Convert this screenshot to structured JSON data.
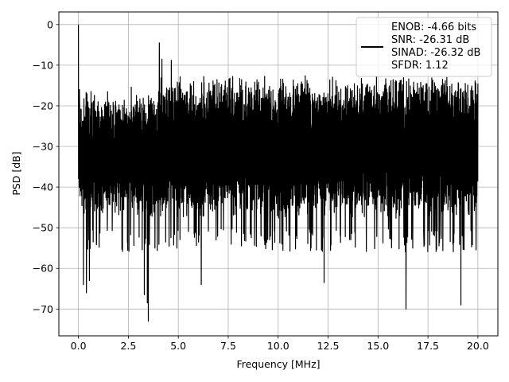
{
  "chart_data": {
    "type": "line",
    "title": "",
    "xlabel": "Frequency [MHz]",
    "ylabel": "PSD [dB]",
    "xlim": [
      -0.98,
      21.0
    ],
    "ylim": [
      -76.6,
      3.1
    ],
    "xticks": [
      0.0,
      2.5,
      5.0,
      7.5,
      10.0,
      12.5,
      15.0,
      17.5,
      20.0
    ],
    "xtick_labels": [
      "0.0",
      "2.5",
      "5.0",
      "7.5",
      "10.0",
      "12.5",
      "15.0",
      "17.5",
      "20.0"
    ],
    "yticks": [
      0,
      -10,
      -20,
      -30,
      -40,
      -50,
      -60,
      -70
    ],
    "ytick_labels": [
      "0",
      "−10",
      "−20",
      "−30",
      "−40",
      "−50",
      "−60",
      "−70"
    ],
    "grid": true,
    "legend_position": "top-right",
    "series": [
      {
        "color": "#000000",
        "x_range": [
          0.0,
          20.0
        ],
        "noise_floor_mean_db": -30,
        "upper_envelope_db": -14,
        "lower_envelope_db": -50,
        "spikes": [
          {
            "x": 0.0,
            "y": 0.0
          },
          {
            "x": 0.05,
            "y": -16.0
          },
          {
            "x": 4.05,
            "y": -4.5
          },
          {
            "x": 4.18,
            "y": -8.5
          },
          {
            "x": 4.65,
            "y": -8.8
          }
        ],
        "dips": [
          {
            "x": 0.25,
            "y": -64.0
          },
          {
            "x": 0.4,
            "y": -66.0
          },
          {
            "x": 0.55,
            "y": -63.0
          },
          {
            "x": 3.3,
            "y": -66.5
          },
          {
            "x": 3.45,
            "y": -68.5
          },
          {
            "x": 3.5,
            "y": -73.0
          },
          {
            "x": 6.15,
            "y": -64.0
          },
          {
            "x": 12.3,
            "y": -63.5
          },
          {
            "x": 16.4,
            "y": -70.0
          },
          {
            "x": 19.15,
            "y": -69.0
          }
        ]
      }
    ],
    "legend": {
      "lines": [
        "ENOB: -4.66 bits",
        "SNR: -26.31 dB",
        "SINAD: -26.32 dB",
        "SFDR: 1.12"
      ]
    }
  }
}
